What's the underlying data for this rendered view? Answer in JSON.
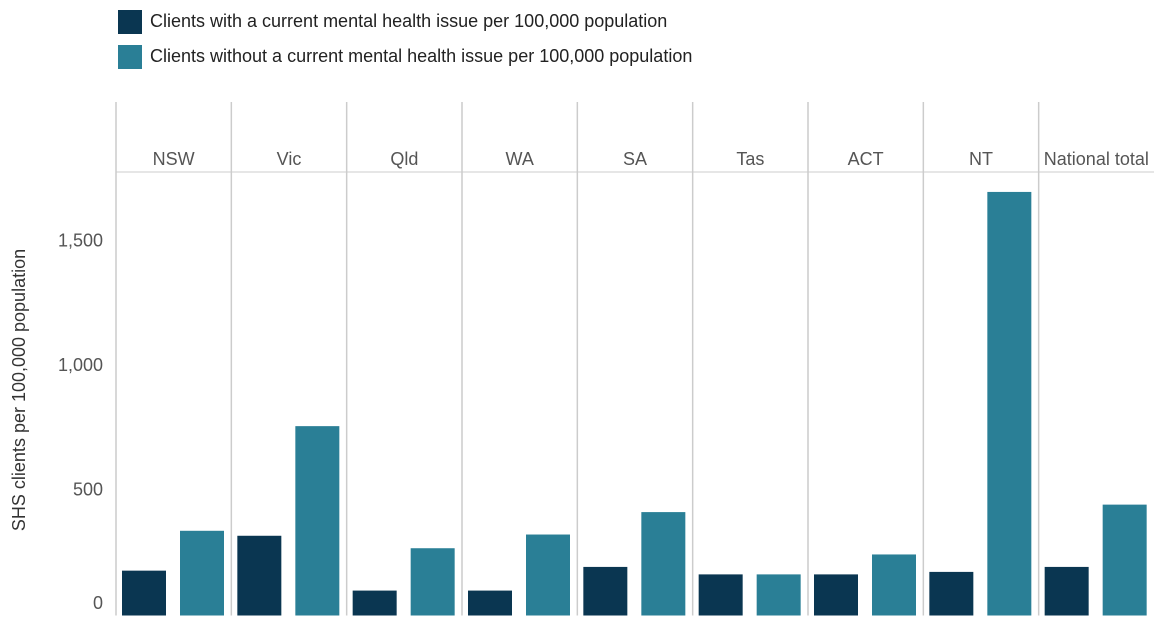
{
  "chart_data": {
    "type": "bar",
    "y_label": "SHS clients per 100,000 population",
    "categories": [
      "NSW",
      "Vic",
      "Qld",
      "WA",
      "SA",
      "Tas",
      "ACT",
      "NT",
      "National total"
    ],
    "series": [
      {
        "name": "Clients with a current mental health issue per 100,000 population",
        "color": "#0a3651",
        "values": [
          180,
          320,
          100,
          100,
          195,
          165,
          165,
          175,
          195
        ]
      },
      {
        "name": "Clients without a current mental health issue per 100,000 population",
        "color": "#2a7f96",
        "values": [
          340,
          760,
          270,
          325,
          415,
          165,
          245,
          1700,
          445
        ]
      }
    ],
    "ylim": [
      0,
      1780
    ],
    "yticks": [
      0,
      500,
      {
        "value": 1000,
        "label": "1,000"
      },
      {
        "value": 1500,
        "label": "1,500"
      }
    ]
  }
}
